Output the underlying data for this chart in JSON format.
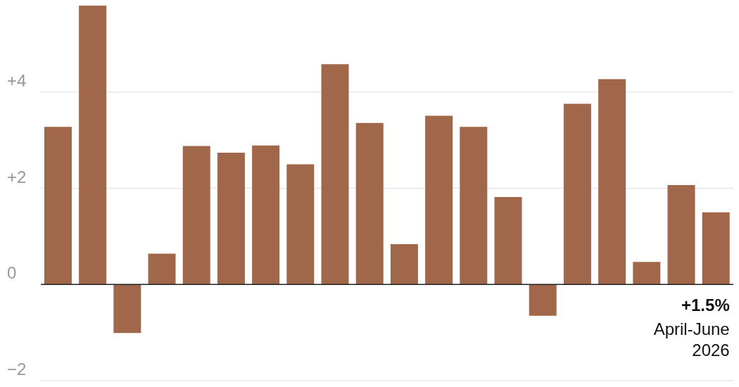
{
  "chart_data": {
    "type": "bar",
    "categories": [
      null,
      null,
      null,
      null,
      null,
      null,
      null,
      null,
      null,
      null,
      null,
      null,
      null,
      null,
      null,
      null,
      null,
      null,
      null,
      null
    ],
    "values": [
      3.28,
      5.8,
      -1.01,
      0.64,
      2.88,
      2.74,
      2.89,
      2.5,
      4.58,
      3.36,
      0.84,
      3.51,
      3.28,
      1.82,
      -0.65,
      3.76,
      4.27,
      0.47,
      2.07,
      1.5
    ],
    "value_labels": [
      null,
      null,
      null,
      null,
      null,
      null,
      null,
      null,
      null,
      null,
      null,
      null,
      null,
      null,
      null,
      null,
      null,
      null,
      null,
      "+1.5%"
    ],
    "color": "#a0674a",
    "ylim": [
      -2,
      5.8
    ],
    "yticks": [
      {
        "value": -2,
        "label": "−2"
      },
      {
        "value": 0,
        "label": "0"
      },
      {
        "value": 2,
        "label": "+2"
      },
      {
        "value": 4,
        "label": "+4"
      }
    ],
    "grid": "y",
    "annotations": [
      "April-June 2026"
    ]
  }
}
